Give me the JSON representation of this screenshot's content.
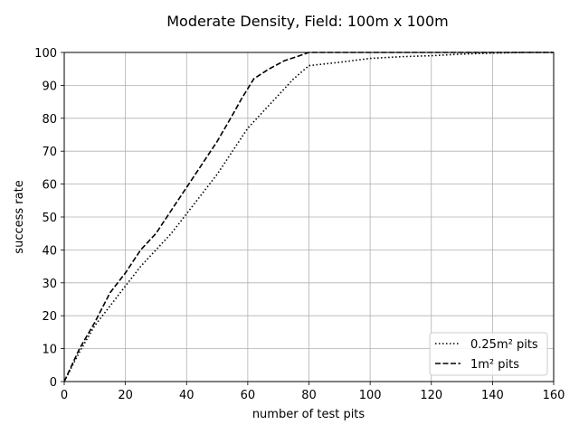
{
  "chart_data": {
    "type": "line",
    "title": "Moderate Density, Field: 100m x 100m",
    "xlabel": "number of test pits",
    "ylabel": "success rate",
    "xlim": [
      0,
      160
    ],
    "ylim": [
      0,
      100
    ],
    "xticks": [
      0,
      20,
      40,
      60,
      80,
      100,
      120,
      140,
      160
    ],
    "yticks": [
      0,
      10,
      20,
      30,
      40,
      50,
      60,
      70,
      80,
      90,
      100
    ],
    "grid": true,
    "legend_position": "lower-right",
    "series": [
      {
        "name": "0.25m² pits",
        "style": "dotted",
        "color": "#000000",
        "x": [
          0,
          5,
          10,
          15,
          20,
          25,
          30,
          35,
          40,
          45,
          50,
          55,
          60,
          65,
          70,
          75,
          80,
          90,
          100,
          110,
          120,
          130,
          140,
          150,
          160
        ],
        "y": [
          0,
          9,
          17,
          23,
          29,
          35,
          40,
          45,
          51,
          57,
          63,
          70,
          77,
          82,
          87,
          92,
          96,
          97,
          98.2,
          98.7,
          99,
          99.5,
          99.8,
          100,
          100
        ]
      },
      {
        "name": "1m² pits",
        "style": "dashed",
        "color": "#000000",
        "x": [
          0,
          5,
          10,
          15,
          20,
          25,
          30,
          35,
          40,
          45,
          50,
          55,
          58,
          62,
          67,
          72,
          76,
          80,
          90,
          100,
          110,
          120,
          130,
          140,
          150,
          160
        ],
        "y": [
          0,
          10,
          18,
          27,
          33,
          40,
          45,
          52,
          59,
          66,
          73,
          81,
          86,
          92,
          95,
          97.5,
          98.7,
          100,
          100,
          100,
          100,
          100,
          100,
          100,
          100,
          100
        ]
      }
    ]
  }
}
